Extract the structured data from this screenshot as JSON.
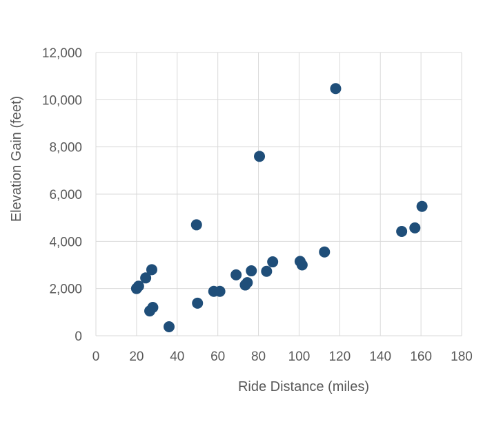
{
  "chart_data": {
    "type": "scatter",
    "title": "",
    "xlabel": "Ride Distance (miles)",
    "ylabel": "Elevation Gain (feet)",
    "xlim": [
      0,
      180
    ],
    "ylim": [
      0,
      12000
    ],
    "xticks": [
      0,
      20,
      40,
      60,
      80,
      100,
      120,
      140,
      160,
      180
    ],
    "yticks": [
      0,
      2000,
      4000,
      6000,
      8000,
      10000,
      12000
    ],
    "xtick_labels": [
      "0",
      "20",
      "40",
      "60",
      "80",
      "100",
      "120",
      "140",
      "160",
      "180"
    ],
    "ytick_labels": [
      "0",
      "2,000",
      "4,000",
      "6,000",
      "8,000",
      "10,000",
      "12,000"
    ],
    "grid": true,
    "legend": "none",
    "marker_color": "#1F4E79",
    "grid_color": "#D9D9D9",
    "points": [
      {
        "x": 20,
        "y": 2000
      },
      {
        "x": 21,
        "y": 2100
      },
      {
        "x": 24.5,
        "y": 2450
      },
      {
        "x": 27.5,
        "y": 2800
      },
      {
        "x": 26.5,
        "y": 1050
      },
      {
        "x": 28,
        "y": 1200
      },
      {
        "x": 36,
        "y": 380
      },
      {
        "x": 49.5,
        "y": 4700
      },
      {
        "x": 50,
        "y": 1380
      },
      {
        "x": 58,
        "y": 1880
      },
      {
        "x": 61,
        "y": 1880
      },
      {
        "x": 69,
        "y": 2580
      },
      {
        "x": 73.5,
        "y": 2150
      },
      {
        "x": 74.5,
        "y": 2250
      },
      {
        "x": 76.5,
        "y": 2750
      },
      {
        "x": 80.5,
        "y": 7600
      },
      {
        "x": 84,
        "y": 2730
      },
      {
        "x": 87,
        "y": 3130
      },
      {
        "x": 100.5,
        "y": 3150
      },
      {
        "x": 101.5,
        "y": 3000
      },
      {
        "x": 112.5,
        "y": 3550
      },
      {
        "x": 118,
        "y": 10470
      },
      {
        "x": 150.5,
        "y": 4420
      },
      {
        "x": 157,
        "y": 4570
      },
      {
        "x": 160.5,
        "y": 5480
      }
    ]
  }
}
